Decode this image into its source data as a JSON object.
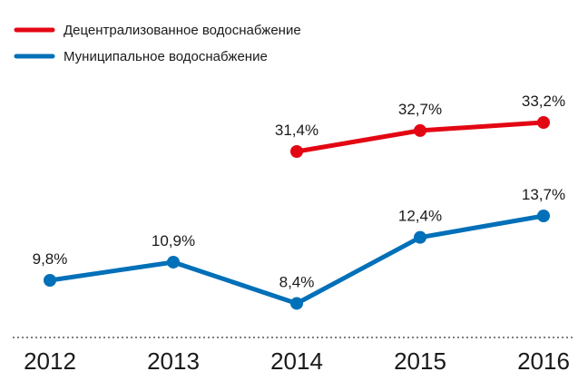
{
  "chart_data": {
    "type": "line",
    "x": [
      "2012",
      "2013",
      "2014",
      "2015",
      "2016"
    ],
    "series": [
      {
        "name": "Децентрализованное водоснабжение",
        "color": "#e30613",
        "values": [
          null,
          null,
          31.4,
          32.7,
          33.2
        ],
        "labels": [
          null,
          null,
          "31,4%",
          "32,7%",
          "33,2%"
        ]
      },
      {
        "name": "Муниципальное водоснабжение",
        "color": "#0070b8",
        "values": [
          9.8,
          10.9,
          8.4,
          12.4,
          13.7
        ],
        "labels": [
          "9,8%",
          "10,9%",
          "8,4%",
          "12,4%",
          "13,7%"
        ]
      }
    ],
    "legend_position": "top-left",
    "grid": false,
    "baseline": "dotted"
  }
}
